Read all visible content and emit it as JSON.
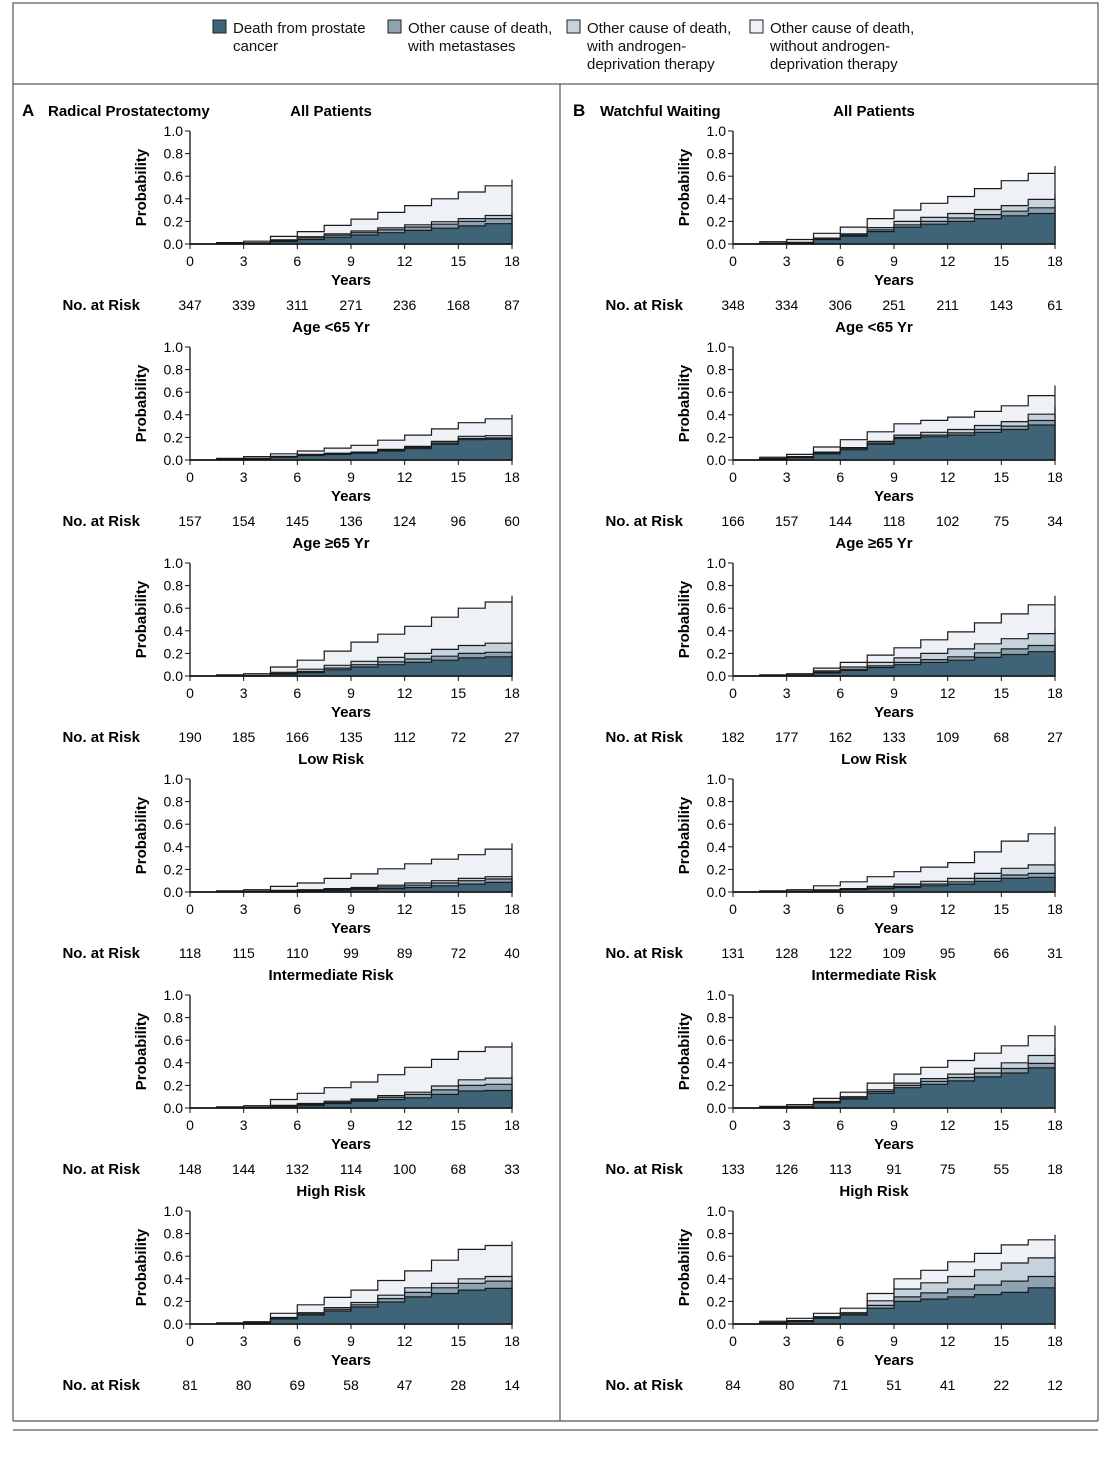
{
  "legend": {
    "items": [
      {
        "lines": [
          "Death from prostate",
          "cancer"
        ],
        "color": "#3f6478"
      },
      {
        "lines": [
          "Other cause of death,",
          "with metastases"
        ],
        "color": "#8da3b2"
      },
      {
        "lines": [
          "Other cause of death,",
          "with androgen-",
          "deprivation therapy"
        ],
        "color": "#c6d3dc"
      },
      {
        "lines": [
          "Other cause of death,",
          "without androgen-",
          "deprivation therapy"
        ],
        "color": "#eef2f6"
      }
    ]
  },
  "panels": [
    {
      "letter": "A",
      "title": "Radical Prostatectomy"
    },
    {
      "letter": "B",
      "title": "Watchful Waiting"
    }
  ],
  "axis": {
    "xlabel": "Years",
    "ylabel": "Probability",
    "x_ticks": [
      "0",
      "3",
      "6",
      "9",
      "12",
      "15",
      "18"
    ],
    "y_ticks": [
      "0.0",
      "0.2",
      "0.4",
      "0.6",
      "0.8",
      "1.0"
    ],
    "risk_label": "No. at Risk"
  },
  "chart_data": [
    {
      "type": "area",
      "panel": "Radical Prostatectomy",
      "title": "All Patients",
      "xlim": [
        0,
        18
      ],
      "ylim": [
        0,
        1
      ],
      "x": [
        0,
        3,
        6,
        9,
        12,
        15,
        18
      ],
      "series": [
        {
          "values": [
            0,
            0.005,
            0.04,
            0.08,
            0.12,
            0.16,
            0.2
          ]
        },
        {
          "values": [
            0,
            0.008,
            0.055,
            0.1,
            0.15,
            0.2,
            0.25
          ]
        },
        {
          "values": [
            0,
            0.01,
            0.065,
            0.115,
            0.17,
            0.225,
            0.28
          ]
        },
        {
          "values": [
            0,
            0.025,
            0.11,
            0.22,
            0.34,
            0.46,
            0.57
          ]
        }
      ],
      "no_at_risk": [
        "347",
        "339",
        "311",
        "271",
        "236",
        "168",
        "87"
      ]
    },
    {
      "type": "area",
      "panel": "Radical Prostatectomy",
      "title": "Age <65 Yr",
      "xlim": [
        0,
        18
      ],
      "ylim": [
        0,
        1
      ],
      "x": [
        0,
        3,
        6,
        9,
        12,
        15,
        18
      ],
      "series": [
        {
          "values": [
            0,
            0.01,
            0.04,
            0.06,
            0.1,
            0.18,
            0.19
          ]
        },
        {
          "values": [
            0,
            0.012,
            0.045,
            0.065,
            0.11,
            0.19,
            0.2
          ]
        },
        {
          "values": [
            0,
            0.015,
            0.05,
            0.07,
            0.12,
            0.21,
            0.22
          ]
        },
        {
          "values": [
            0,
            0.03,
            0.08,
            0.13,
            0.22,
            0.33,
            0.4
          ]
        }
      ],
      "no_at_risk": [
        "157",
        "154",
        "145",
        "136",
        "124",
        "96",
        "60"
      ]
    },
    {
      "type": "area",
      "panel": "Radical Prostatectomy",
      "title": "Age ≥65 Yr",
      "xlim": [
        0,
        18
      ],
      "ylim": [
        0,
        1
      ],
      "x": [
        0,
        3,
        6,
        9,
        12,
        15,
        18
      ],
      "series": [
        {
          "values": [
            0,
            0.003,
            0.03,
            0.08,
            0.12,
            0.16,
            0.18
          ]
        },
        {
          "values": [
            0,
            0.004,
            0.04,
            0.1,
            0.15,
            0.2,
            0.22
          ]
        },
        {
          "values": [
            0,
            0.006,
            0.06,
            0.13,
            0.2,
            0.27,
            0.31
          ]
        },
        {
          "values": [
            0,
            0.02,
            0.14,
            0.3,
            0.44,
            0.6,
            0.71
          ]
        }
      ],
      "no_at_risk": [
        "190",
        "185",
        "166",
        "135",
        "112",
        "72",
        "27"
      ]
    },
    {
      "type": "area",
      "panel": "Radical Prostatectomy",
      "title": "Low Risk",
      "xlim": [
        0,
        18
      ],
      "ylim": [
        0,
        1
      ],
      "x": [
        0,
        3,
        6,
        9,
        12,
        15,
        18
      ],
      "series": [
        {
          "values": [
            0,
            0.005,
            0.01,
            0.02,
            0.04,
            0.07,
            0.1
          ]
        },
        {
          "values": [
            0,
            0.006,
            0.015,
            0.03,
            0.06,
            0.1,
            0.13
          ]
        },
        {
          "values": [
            0,
            0.008,
            0.02,
            0.04,
            0.08,
            0.12,
            0.15
          ]
        },
        {
          "values": [
            0,
            0.02,
            0.08,
            0.16,
            0.25,
            0.33,
            0.43
          ]
        }
      ],
      "no_at_risk": [
        "118",
        "115",
        "110",
        "99",
        "89",
        "72",
        "40"
      ]
    },
    {
      "type": "area",
      "panel": "Radical Prostatectomy",
      "title": "Intermediate Risk",
      "xlim": [
        0,
        18
      ],
      "ylim": [
        0,
        1
      ],
      "x": [
        0,
        3,
        6,
        9,
        12,
        15,
        18
      ],
      "series": [
        {
          "values": [
            0,
            0.003,
            0.02,
            0.06,
            0.09,
            0.15,
            0.16
          ]
        },
        {
          "values": [
            0,
            0.005,
            0.03,
            0.07,
            0.12,
            0.2,
            0.22
          ]
        },
        {
          "values": [
            0,
            0.008,
            0.04,
            0.08,
            0.14,
            0.25,
            0.28
          ]
        },
        {
          "values": [
            0,
            0.02,
            0.13,
            0.23,
            0.36,
            0.5,
            0.58
          ]
        }
      ],
      "no_at_risk": [
        "148",
        "144",
        "132",
        "114",
        "100",
        "68",
        "33"
      ]
    },
    {
      "type": "area",
      "panel": "Radical Prostatectomy",
      "title": "High Risk",
      "xlim": [
        0,
        18
      ],
      "ylim": [
        0,
        1
      ],
      "x": [
        0,
        3,
        6,
        9,
        12,
        15,
        18
      ],
      "series": [
        {
          "values": [
            0,
            0.01,
            0.08,
            0.15,
            0.24,
            0.3,
            0.33
          ]
        },
        {
          "values": [
            0,
            0.012,
            0.09,
            0.17,
            0.28,
            0.36,
            0.4
          ]
        },
        {
          "values": [
            0,
            0.015,
            0.1,
            0.19,
            0.32,
            0.4,
            0.44
          ]
        },
        {
          "values": [
            0,
            0.02,
            0.17,
            0.3,
            0.47,
            0.66,
            0.73
          ]
        }
      ],
      "no_at_risk": [
        "81",
        "80",
        "69",
        "58",
        "47",
        "28",
        "14"
      ]
    },
    {
      "type": "area",
      "panel": "Watchful Waiting",
      "title": "All Patients",
      "xlim": [
        0,
        18
      ],
      "ylim": [
        0,
        1
      ],
      "x": [
        0,
        3,
        6,
        9,
        12,
        15,
        18
      ],
      "series": [
        {
          "values": [
            0,
            0.01,
            0.07,
            0.15,
            0.2,
            0.25,
            0.29
          ]
        },
        {
          "values": [
            0,
            0.012,
            0.08,
            0.17,
            0.23,
            0.29,
            0.35
          ]
        },
        {
          "values": [
            0,
            0.015,
            0.09,
            0.2,
            0.27,
            0.34,
            0.45
          ]
        },
        {
          "values": [
            0,
            0.04,
            0.15,
            0.3,
            0.42,
            0.56,
            0.69
          ]
        }
      ],
      "no_at_risk": [
        "348",
        "334",
        "306",
        "251",
        "211",
        "143",
        "61"
      ]
    },
    {
      "type": "area",
      "panel": "Watchful Waiting",
      "title": "Age <65 Yr",
      "xlim": [
        0,
        18
      ],
      "ylim": [
        0,
        1
      ],
      "x": [
        0,
        3,
        6,
        9,
        12,
        15,
        18
      ],
      "series": [
        {
          "values": [
            0,
            0.02,
            0.09,
            0.19,
            0.22,
            0.27,
            0.35
          ]
        },
        {
          "values": [
            0,
            0.025,
            0.1,
            0.2,
            0.24,
            0.3,
            0.4
          ]
        },
        {
          "values": [
            0,
            0.03,
            0.11,
            0.22,
            0.27,
            0.34,
            0.47
          ]
        },
        {
          "values": [
            0,
            0.05,
            0.18,
            0.32,
            0.38,
            0.48,
            0.66
          ]
        }
      ],
      "no_at_risk": [
        "166",
        "157",
        "144",
        "118",
        "102",
        "75",
        "34"
      ]
    },
    {
      "type": "area",
      "panel": "Watchful Waiting",
      "title": "Age ≥65 Yr",
      "xlim": [
        0,
        18
      ],
      "ylim": [
        0,
        1
      ],
      "x": [
        0,
        3,
        6,
        9,
        12,
        15,
        18
      ],
      "series": [
        {
          "values": [
            0,
            0.005,
            0.05,
            0.1,
            0.14,
            0.19,
            0.24
          ]
        },
        {
          "values": [
            0,
            0.007,
            0.06,
            0.12,
            0.17,
            0.24,
            0.3
          ]
        },
        {
          "values": [
            0,
            0.01,
            0.08,
            0.16,
            0.24,
            0.33,
            0.42
          ]
        },
        {
          "values": [
            0,
            0.02,
            0.12,
            0.25,
            0.39,
            0.55,
            0.71
          ]
        }
      ],
      "no_at_risk": [
        "182",
        "177",
        "162",
        "133",
        "109",
        "68",
        "27"
      ]
    },
    {
      "type": "area",
      "panel": "Watchful Waiting",
      "title": "Low Risk",
      "xlim": [
        0,
        18
      ],
      "ylim": [
        0,
        1
      ],
      "x": [
        0,
        3,
        6,
        9,
        12,
        15,
        18
      ],
      "series": [
        {
          "values": [
            0,
            0.005,
            0.02,
            0.04,
            0.07,
            0.12,
            0.14
          ]
        },
        {
          "values": [
            0,
            0.006,
            0.025,
            0.05,
            0.09,
            0.15,
            0.18
          ]
        },
        {
          "values": [
            0,
            0.008,
            0.03,
            0.07,
            0.12,
            0.21,
            0.27
          ]
        },
        {
          "values": [
            0,
            0.02,
            0.09,
            0.18,
            0.26,
            0.45,
            0.58
          ]
        }
      ],
      "no_at_risk": [
        "131",
        "128",
        "122",
        "109",
        "95",
        "66",
        "31"
      ]
    },
    {
      "type": "area",
      "panel": "Watchful Waiting",
      "title": "Intermediate Risk",
      "xlim": [
        0,
        18
      ],
      "ylim": [
        0,
        1
      ],
      "x": [
        0,
        3,
        6,
        9,
        12,
        15,
        18
      ],
      "series": [
        {
          "values": [
            0,
            0.01,
            0.08,
            0.18,
            0.24,
            0.31,
            0.4
          ]
        },
        {
          "values": [
            0,
            0.012,
            0.09,
            0.2,
            0.27,
            0.35,
            0.44
          ]
        },
        {
          "values": [
            0,
            0.015,
            0.1,
            0.22,
            0.3,
            0.4,
            0.53
          ]
        },
        {
          "values": [
            0,
            0.03,
            0.14,
            0.3,
            0.42,
            0.55,
            0.73
          ]
        }
      ],
      "no_at_risk": [
        "133",
        "126",
        "113",
        "91",
        "75",
        "55",
        "18"
      ]
    },
    {
      "type": "area",
      "panel": "Watchful Waiting",
      "title": "High Risk",
      "xlim": [
        0,
        18
      ],
      "ylim": [
        0,
        1
      ],
      "x": [
        0,
        3,
        6,
        9,
        12,
        15,
        18
      ],
      "series": [
        {
          "values": [
            0,
            0.02,
            0.08,
            0.2,
            0.24,
            0.28,
            0.36
          ]
        },
        {
          "values": [
            0,
            0.025,
            0.09,
            0.24,
            0.31,
            0.38,
            0.46
          ]
        },
        {
          "values": [
            0,
            0.03,
            0.1,
            0.31,
            0.42,
            0.54,
            0.63
          ]
        },
        {
          "values": [
            0,
            0.05,
            0.14,
            0.4,
            0.55,
            0.7,
            0.79
          ]
        }
      ],
      "no_at_risk": [
        "84",
        "80",
        "71",
        "51",
        "41",
        "22",
        "12"
      ]
    }
  ]
}
